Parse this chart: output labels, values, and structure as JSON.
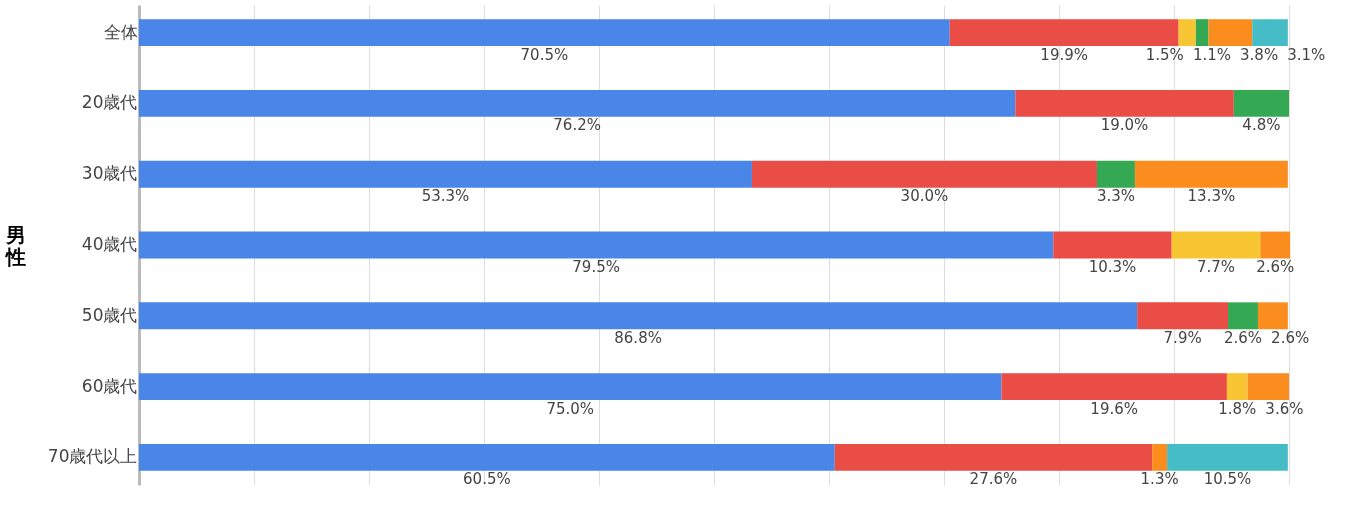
{
  "chart_data": {
    "type": "bar",
    "orientation": "horizontal",
    "stacked": true,
    "ylabel": "男性",
    "categories": [
      "全体",
      "20歳代",
      "30歳代",
      "40歳代",
      "50歳代",
      "60歳代",
      "70歳代以上"
    ],
    "series": [
      {
        "color": "#4a86e8",
        "values": [
          70.5,
          76.2,
          53.3,
          79.5,
          86.8,
          75.0,
          60.5
        ],
        "value_labels": [
          "70.5%",
          "76.2%",
          "53.3%",
          "79.5%",
          "86.8%",
          "75.0%",
          "60.5%"
        ]
      },
      {
        "color": "#ea4c46",
        "values": [
          19.9,
          19.0,
          30.0,
          10.3,
          7.9,
          19.6,
          27.6
        ],
        "value_labels": [
          "19.9%",
          "19.0%",
          "30.0%",
          "10.3%",
          "7.9%",
          "19.6%",
          "27.6%"
        ]
      },
      {
        "color": "#f9c633",
        "values": [
          1.5,
          null,
          null,
          7.7,
          null,
          1.8,
          null
        ],
        "value_labels": [
          "1.5%",
          null,
          null,
          "7.7%",
          null,
          "1.8%",
          null
        ]
      },
      {
        "color": "#34a853",
        "values": [
          1.1,
          4.8,
          3.3,
          null,
          2.6,
          null,
          null
        ],
        "value_labels": [
          "1.1%",
          "4.8%",
          "3.3%",
          null,
          "2.6%",
          null,
          null
        ]
      },
      {
        "color": "#fb8c1e",
        "values": [
          3.8,
          null,
          13.3,
          2.6,
          2.6,
          3.6,
          1.3
        ],
        "value_labels": [
          "3.8%",
          null,
          "13.3%",
          "2.6%",
          "2.6%",
          "3.6%",
          "1.3%"
        ]
      },
      {
        "color": "#46bdc6",
        "values": [
          3.1,
          null,
          null,
          null,
          null,
          null,
          10.5
        ],
        "value_labels": [
          "3.1%",
          null,
          null,
          null,
          null,
          null,
          "10.5%"
        ]
      }
    ],
    "xlim": [
      0,
      100
    ],
    "xticks": [
      {
        "value": 0,
        "label": null
      },
      {
        "value": 10,
        "label": null
      },
      {
        "value": 20,
        "label": null
      },
      {
        "value": 30,
        "label": null
      },
      {
        "value": 40,
        "label": null
      },
      {
        "value": 50,
        "label": null
      },
      {
        "value": 60,
        "label": null
      },
      {
        "value": 70,
        "label": null
      },
      {
        "value": 80,
        "label": null
      },
      {
        "value": 90,
        "label": null
      },
      {
        "value": 100,
        "label": null
      }
    ],
    "tick_labels": "y",
    "grid": "x",
    "legend": false
  }
}
